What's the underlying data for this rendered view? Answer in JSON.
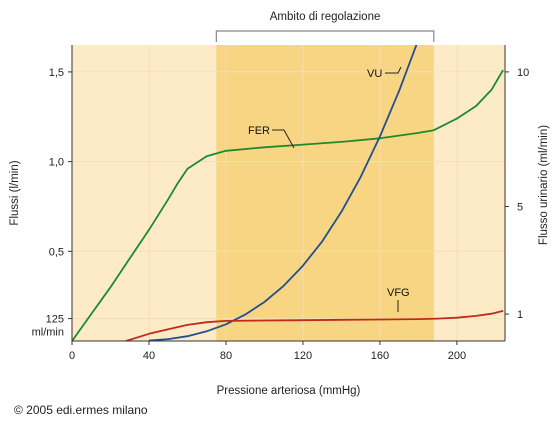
{
  "chart_data": {
    "type": "line",
    "title": "",
    "region": {
      "label": "Ambito di regolazione",
      "x_start": 75,
      "x_end": 188
    },
    "xlabel": "Pressione arteriosa (mmHg)",
    "xlim": [
      0,
      225
    ],
    "x_ticks": [
      {
        "v": 0,
        "label": "0"
      },
      {
        "v": 40,
        "label": "40"
      },
      {
        "v": 80,
        "label": "80"
      },
      {
        "v": 120,
        "label": "120"
      },
      {
        "v": 160,
        "label": "160"
      },
      {
        "v": 200,
        "label": "200"
      }
    ],
    "ylabel": "Flussi (l/min)",
    "ylim": [
      0,
      1.65
    ],
    "y_ticks": [
      {
        "v": 0.5,
        "label": "0,5"
      },
      {
        "v": 1.0,
        "label": "1,0"
      },
      {
        "v": 1.5,
        "label": "1,5"
      }
    ],
    "y_ticks_ml": {
      "v": 0.125,
      "label": "125",
      "label2": "ml/min"
    },
    "ylabel_right": "Flusso urinario (ml/min)",
    "ylim_right": [
      0,
      11
    ],
    "y_ticks_right": [
      {
        "v": 1,
        "label": "1"
      },
      {
        "v": 5,
        "label": "5"
      },
      {
        "v": 10,
        "label": "10"
      }
    ],
    "series": [
      {
        "name": "FER",
        "axis": "left",
        "color": "#1e8a2e",
        "x": [
          0,
          10,
          20,
          30,
          40,
          50,
          55,
          60,
          70,
          80,
          100,
          120,
          140,
          160,
          180,
          188,
          200,
          210,
          218,
          224
        ],
        "y": [
          0.0,
          0.15,
          0.3,
          0.46,
          0.62,
          0.79,
          0.88,
          0.96,
          1.03,
          1.06,
          1.08,
          1.095,
          1.11,
          1.13,
          1.16,
          1.175,
          1.24,
          1.31,
          1.4,
          1.51
        ],
        "label_at": {
          "x": 118,
          "y": 1.095
        }
      },
      {
        "name": "VU",
        "axis": "right",
        "color": "#234f8f",
        "x": [
          40,
          50,
          60,
          70,
          80,
          90,
          100,
          110,
          120,
          130,
          140,
          150,
          160,
          170,
          180
        ],
        "y": [
          0.02,
          0.07,
          0.18,
          0.36,
          0.62,
          0.98,
          1.45,
          2.05,
          2.8,
          3.7,
          4.8,
          6.1,
          7.6,
          9.3,
          11.2
        ],
        "label_at": {
          "x": 172,
          "y": 9.6
        }
      },
      {
        "name": "VFG",
        "axis": "left",
        "color": "#c02a1c",
        "x": [
          28,
          40,
          50,
          60,
          70,
          80,
          100,
          120,
          140,
          160,
          180,
          190,
          200,
          210,
          218,
          224
        ],
        "y": [
          0.0,
          0.04,
          0.065,
          0.09,
          0.105,
          0.112,
          0.114,
          0.116,
          0.118,
          0.12,
          0.122,
          0.125,
          0.13,
          0.14,
          0.152,
          0.168
        ],
        "label_at": {
          "x": 170,
          "y": 0.12
        }
      }
    ],
    "grid": true,
    "legend": "inline labels"
  },
  "footer": {
    "copyright": "© 2005 edi.ermes milano"
  }
}
